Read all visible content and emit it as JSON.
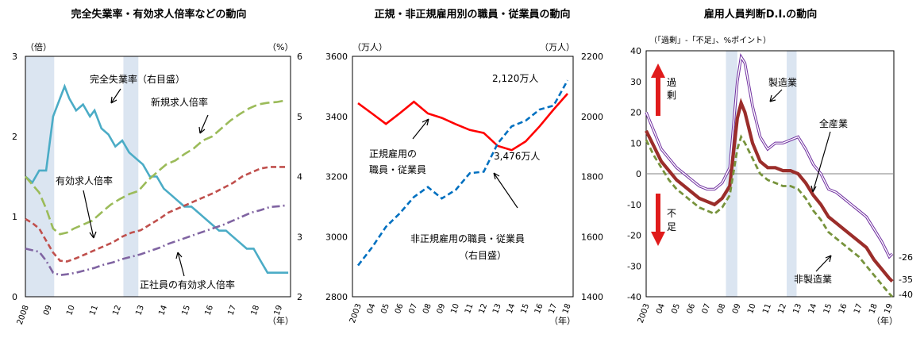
{
  "chart_data": [
    {
      "type": "line",
      "title": "完全失業率・有効求人倍率などの動向",
      "left_unit": "（倍）",
      "right_unit": "（%）",
      "x_unit": "（年）",
      "left_ylim": [
        0,
        3
      ],
      "right_ylim": [
        2,
        6
      ],
      "left_ticks": [
        "0",
        "1",
        "2",
        "3"
      ],
      "right_ticks": [
        "2",
        "3",
        "4",
        "5",
        "6"
      ],
      "x_ticks": [
        "2008",
        "09",
        "10",
        "11",
        "12",
        "13",
        "14",
        "15",
        "16",
        "17",
        "18",
        "19"
      ],
      "shaded_periods": [
        [
          2008.0,
          2009.25
        ],
        [
          2012.25,
          2012.9
        ]
      ],
      "series": [
        {
          "name": "完全失業率（右目盛）",
          "axis": "right",
          "color": "#4bacc6",
          "style": "solid",
          "x": [
            2008.0,
            2008.3,
            2008.6,
            2008.9,
            2009.2,
            2009.5,
            2009.7,
            2009.9,
            2010.2,
            2010.5,
            2010.8,
            2011.0,
            2011.3,
            2011.6,
            2011.9,
            2012.2,
            2012.5,
            2012.8,
            2013.1,
            2013.4,
            2013.7,
            2014.0,
            2014.3,
            2014.6,
            2014.9,
            2015.2,
            2015.5,
            2015.8,
            2016.1,
            2016.4,
            2016.7,
            2017.0,
            2017.3,
            2017.6,
            2017.9,
            2018.2,
            2018.5,
            2018.8,
            2019.1,
            2019.4
          ],
          "values": [
            4.0,
            3.9,
            4.1,
            4.1,
            5.0,
            5.3,
            5.5,
            5.3,
            5.1,
            5.2,
            5.0,
            5.1,
            4.8,
            4.7,
            4.5,
            4.6,
            4.4,
            4.3,
            4.2,
            4.0,
            4.0,
            3.8,
            3.7,
            3.6,
            3.5,
            3.5,
            3.4,
            3.3,
            3.2,
            3.1,
            3.1,
            3.0,
            2.9,
            2.8,
            2.8,
            2.6,
            2.4,
            2.4,
            2.4,
            2.4
          ]
        },
        {
          "name": "新規求人倍率",
          "axis": "left",
          "color": "#9bbb59",
          "style": "longdash",
          "x": [
            2008.0,
            2008.3,
            2008.6,
            2008.9,
            2009.2,
            2009.5,
            2009.8,
            2010.1,
            2010.5,
            2010.9,
            2011.3,
            2011.7,
            2012.1,
            2012.5,
            2012.9,
            2013.3,
            2013.7,
            2014.1,
            2014.5,
            2014.9,
            2015.3,
            2015.7,
            2016.1,
            2016.5,
            2016.9,
            2017.3,
            2017.7,
            2018.1,
            2018.5,
            2018.9,
            2019.3
          ],
          "values": [
            1.5,
            1.4,
            1.3,
            1.1,
            0.85,
            0.78,
            0.8,
            0.85,
            0.9,
            0.95,
            1.05,
            1.15,
            1.22,
            1.28,
            1.32,
            1.45,
            1.55,
            1.65,
            1.7,
            1.78,
            1.85,
            1.95,
            2.0,
            2.1,
            2.2,
            2.28,
            2.35,
            2.4,
            2.42,
            2.43,
            2.45
          ]
        },
        {
          "name": "有効求人倍率",
          "axis": "left",
          "color": "#c0504d",
          "style": "dash",
          "x": [
            2008.0,
            2008.3,
            2008.6,
            2008.9,
            2009.2,
            2009.5,
            2009.8,
            2010.2,
            2010.6,
            2011.0,
            2011.4,
            2011.8,
            2012.2,
            2012.6,
            2013.0,
            2013.4,
            2013.8,
            2014.2,
            2014.6,
            2015.0,
            2015.4,
            2015.8,
            2016.2,
            2016.6,
            2017.0,
            2017.4,
            2017.8,
            2018.2,
            2018.6,
            2019.0,
            2019.3
          ],
          "values": [
            0.97,
            0.92,
            0.85,
            0.7,
            0.55,
            0.45,
            0.44,
            0.48,
            0.53,
            0.58,
            0.63,
            0.68,
            0.75,
            0.8,
            0.83,
            0.9,
            0.97,
            1.05,
            1.1,
            1.15,
            1.2,
            1.25,
            1.3,
            1.36,
            1.42,
            1.5,
            1.55,
            1.6,
            1.62,
            1.62,
            1.62
          ]
        },
        {
          "name": "正社員の有効求人倍率",
          "axis": "left",
          "color": "#8064a2",
          "style": "dashdot",
          "x": [
            2008.0,
            2008.3,
            2008.6,
            2008.9,
            2009.2,
            2009.5,
            2009.8,
            2010.2,
            2010.6,
            2011.0,
            2011.4,
            2011.8,
            2012.2,
            2012.6,
            2013.0,
            2013.4,
            2013.8,
            2014.2,
            2014.6,
            2015.0,
            2015.4,
            2015.8,
            2016.2,
            2016.6,
            2017.0,
            2017.4,
            2017.8,
            2018.2,
            2018.6,
            2019.0,
            2019.3
          ],
          "values": [
            0.6,
            0.58,
            0.56,
            0.45,
            0.3,
            0.27,
            0.28,
            0.3,
            0.33,
            0.36,
            0.4,
            0.43,
            0.47,
            0.5,
            0.53,
            0.57,
            0.61,
            0.66,
            0.7,
            0.74,
            0.78,
            0.82,
            0.86,
            0.9,
            0.95,
            1.0,
            1.05,
            1.08,
            1.12,
            1.13,
            1.14
          ]
        }
      ],
      "labels": {
        "unemp": "完全失業率（右目盛）",
        "newjob": "新規求人倍率",
        "jobratio": "有効求人倍率",
        "regular": "正社員の有効求人倍率"
      }
    },
    {
      "type": "line",
      "title": "正規・非正規雇用別の職員・従業員の動向",
      "left_unit": "（万人）",
      "right_unit": "（万人）",
      "x_unit": "（年）",
      "left_ylim": [
        2800,
        3600
      ],
      "right_ylim": [
        1400,
        2200
      ],
      "left_ticks": [
        "2800",
        "3000",
        "3200",
        "3400",
        "3600"
      ],
      "right_ticks": [
        "1400",
        "1600",
        "1800",
        "2000",
        "2200"
      ],
      "x_ticks": [
        "2003",
        "04",
        "05",
        "06",
        "07",
        "08",
        "09",
        "10",
        "11",
        "12",
        "13",
        "14",
        "15",
        "16",
        "17",
        "18"
      ],
      "series": [
        {
          "name": "正規雇用の職員・従業員",
          "axis": "left",
          "color": "#ff0000",
          "style": "solid",
          "x": [
            2003,
            2004,
            2005,
            2006,
            2007,
            2008,
            2009,
            2010,
            2011,
            2012,
            2013,
            2014,
            2015,
            2016,
            2017,
            2018
          ],
          "values": [
            3444,
            3410,
            3375,
            3411,
            3449,
            3410,
            3395,
            3374,
            3355,
            3345,
            3302,
            3288,
            3317,
            3367,
            3423,
            3476
          ]
        },
        {
          "name": "非正規雇用の職員・従業員（右目盛）",
          "axis": "right",
          "color": "#0070c0",
          "style": "dash",
          "x": [
            2003,
            2004,
            2005,
            2006,
            2007,
            2008,
            2009,
            2010,
            2011,
            2012,
            2013,
            2014,
            2015,
            2016,
            2017,
            2018
          ],
          "values": [
            1504,
            1564,
            1633,
            1678,
            1732,
            1765,
            1727,
            1756,
            1811,
            1816,
            1910,
            1967,
            1986,
            2023,
            2036,
            2120
          ]
        }
      ],
      "labels": {
        "regular_1": "正規雇用の",
        "regular_2": "職員・従業員",
        "regular_value": "3,476万人",
        "nonregular_1": "非正規雇用の職員・従業員",
        "nonregular_2": "（右目盛）",
        "nonregular_value": "2,120万人"
      }
    },
    {
      "type": "line",
      "title": "雇用人員判断D.I.の動向",
      "unit": "（「過剰」-「不足」、%ポイント）",
      "x_unit": "（年）",
      "ylim": [
        -40,
        40
      ],
      "y_ticks": [
        "-40",
        "-30",
        "-20",
        "-10",
        "0",
        "10",
        "20",
        "30",
        "40"
      ],
      "x_ticks": [
        "2003",
        "04",
        "05",
        "06",
        "07",
        "08",
        "09",
        "10",
        "11",
        "12",
        "13",
        "14",
        "15",
        "16",
        "17",
        "18",
        "19"
      ],
      "shaded_periods": [
        [
          2008.25,
          2009.0
        ],
        [
          2012.25,
          2012.9
        ]
      ],
      "series": [
        {
          "name": "製造業",
          "color": "#7030a0",
          "style": "double",
          "x": [
            2003.0,
            2003.5,
            2004.0,
            2004.5,
            2005.0,
            2005.5,
            2006.0,
            2006.5,
            2007.0,
            2007.5,
            2008.0,
            2008.5,
            2009.0,
            2009.25,
            2009.5,
            2010.0,
            2010.5,
            2011.0,
            2011.5,
            2012.0,
            2012.5,
            2013.0,
            2013.5,
            2014.0,
            2014.5,
            2015.0,
            2015.5,
            2016.0,
            2016.5,
            2017.0,
            2017.5,
            2018.0,
            2018.5,
            2019.0,
            2019.2
          ],
          "values": [
            20,
            14,
            8,
            5,
            2,
            0,
            -2,
            -4,
            -5,
            -5,
            -3,
            2,
            30,
            38,
            36,
            22,
            12,
            8,
            10,
            10,
            11,
            12,
            8,
            3,
            0,
            -5,
            -6,
            -8,
            -10,
            -12,
            -14,
            -18,
            -22,
            -27,
            -26
          ]
        },
        {
          "name": "全産業",
          "color": "#9b2d2a",
          "style": "thick",
          "x": [
            2003.0,
            2003.5,
            2004.0,
            2004.5,
            2005.0,
            2005.5,
            2006.0,
            2006.5,
            2007.0,
            2007.5,
            2008.0,
            2008.5,
            2009.0,
            2009.25,
            2009.5,
            2010.0,
            2010.5,
            2011.0,
            2011.5,
            2012.0,
            2012.5,
            2013.0,
            2013.5,
            2014.0,
            2014.5,
            2015.0,
            2015.5,
            2016.0,
            2016.5,
            2017.0,
            2017.5,
            2018.0,
            2018.5,
            2019.0,
            2019.2
          ],
          "values": [
            14,
            9,
            4,
            1,
            -2,
            -4,
            -6,
            -8,
            -9,
            -10,
            -8,
            -4,
            18,
            23,
            20,
            10,
            4,
            2,
            2,
            1,
            1,
            0,
            -3,
            -7,
            -10,
            -14,
            -16,
            -18,
            -20,
            -22,
            -24,
            -28,
            -31,
            -34,
            -35
          ]
        },
        {
          "name": "非製造業",
          "color": "#77933c",
          "style": "dash",
          "x": [
            2003.0,
            2003.5,
            2004.0,
            2004.5,
            2005.0,
            2005.5,
            2006.0,
            2006.5,
            2007.0,
            2007.5,
            2008.0,
            2008.5,
            2009.0,
            2009.25,
            2009.5,
            2010.0,
            2010.5,
            2011.0,
            2011.5,
            2012.0,
            2012.5,
            2013.0,
            2013.5,
            2014.0,
            2014.5,
            2015.0,
            2015.5,
            2016.0,
            2016.5,
            2017.0,
            2017.5,
            2018.0,
            2018.5,
            2019.0,
            2019.2
          ],
          "values": [
            11,
            6,
            2,
            -2,
            -5,
            -7,
            -9,
            -11,
            -12,
            -13,
            -11,
            -7,
            8,
            12,
            10,
            5,
            0,
            -2,
            -3,
            -4,
            -4,
            -5,
            -8,
            -12,
            -15,
            -19,
            -21,
            -23,
            -25,
            -27,
            -30,
            -33,
            -36,
            -39,
            -40
          ]
        }
      ],
      "labels": {
        "mfg": "製造業",
        "all": "全産業",
        "nonmfg": "非製造業",
        "excess_1": "過",
        "excess_2": "剰",
        "short_1": "不",
        "short_2": "足",
        "end_mfg": "-26",
        "end_all": "-35",
        "end_nonmfg": "-40"
      }
    }
  ]
}
